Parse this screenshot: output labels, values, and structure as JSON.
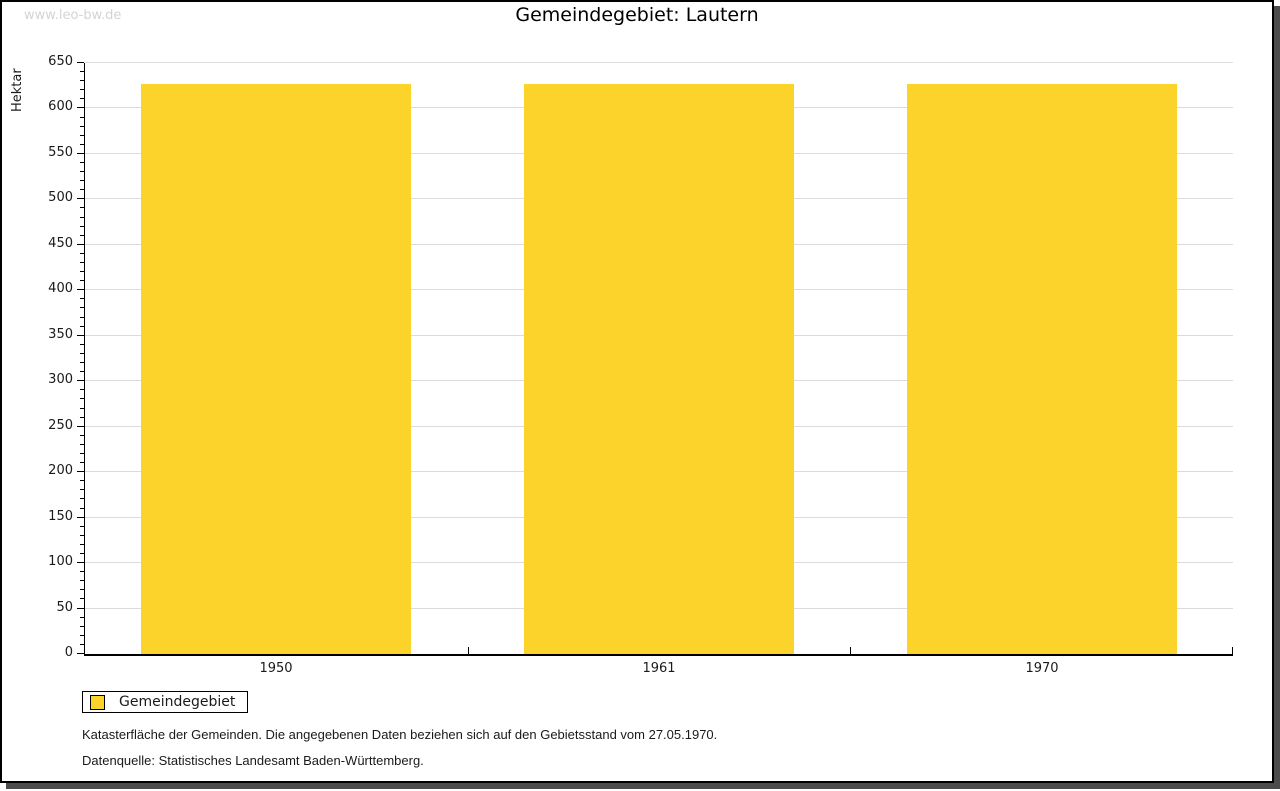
{
  "page": {
    "watermark": "www.leo-bw.de"
  },
  "chart_data": {
    "type": "bar",
    "title": "Gemeindegebiet: Lautern",
    "ylabel": "Hektar",
    "xlabel": "",
    "categories": [
      "1950",
      "1961",
      "1970"
    ],
    "series": [
      {
        "name": "Gemeindegebiet",
        "values": [
          627,
          627,
          627
        ]
      }
    ],
    "ylim": [
      0,
      650
    ],
    "ytick_major_interval": 50,
    "ytick_minor_interval": 10,
    "grid": "horizontal-major",
    "legend_position": "bottom-left",
    "bar_color": "#fcd32b"
  },
  "legend": {
    "label": "Gemeindegebiet",
    "swatch_color": "#fcd32b"
  },
  "footnotes": {
    "line1": "Katasterfläche der Gemeinden. Die angegebenen Daten beziehen sich auf den Gebietsstand vom 27.05.1970.",
    "line2": "Datenquelle: Statistisches Landesamt Baden-Württemberg."
  },
  "colors": {
    "gridline": "#dcdcdc",
    "axis": "#000000",
    "watermark_text": "#d4d4d4",
    "shadow": "#4c4c4c",
    "text": "#1a1a1a"
  }
}
